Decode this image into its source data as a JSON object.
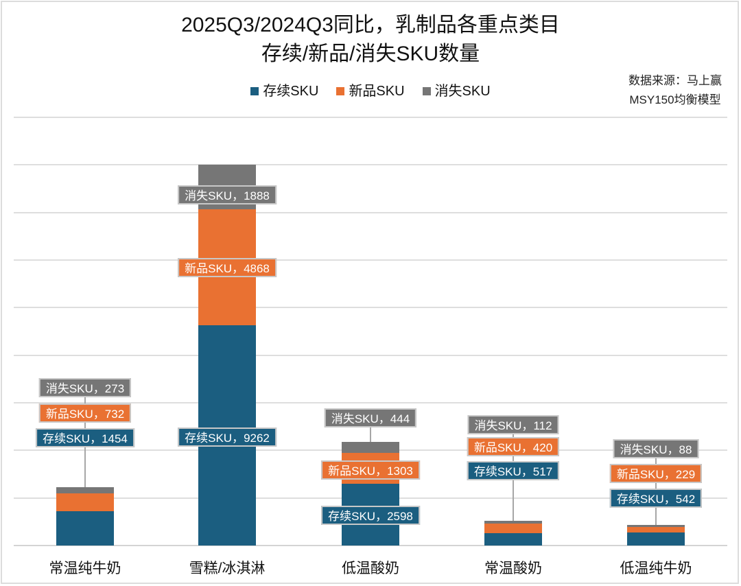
{
  "title": {
    "line1": "2025Q3/2024Q3同比，乳制品各重点类目",
    "line2": "存续/新品/消失SKU数量"
  },
  "source": {
    "line1": "数据来源：马上赢",
    "line2": "MSY150均衡模型"
  },
  "legend": [
    {
      "label": "存续SKU",
      "color": "#1B5E80"
    },
    {
      "label": "新品SKU",
      "color": "#E97132"
    },
    {
      "label": "消失SKU",
      "color": "#767676"
    }
  ],
  "colors": {
    "continuing": "#1B5E80",
    "new": "#E97132",
    "discontinued": "#767676",
    "grid": "#DEDEDE"
  },
  "chart_data": {
    "type": "bar",
    "stacked": true,
    "title": "2025Q3/2024Q3同比，乳制品各重点类目 存续/新品/消失SKU数量",
    "xlabel": "",
    "ylabel": "",
    "ylim": [
      0,
      18000
    ],
    "grid_step": 2000,
    "grid": true,
    "y_tick_labels_visible": false,
    "legend_position": "top",
    "annotation": "数据来源：马上赢 MSY150均衡模型",
    "categories": [
      "常温纯牛奶",
      "雪糕/冰淇淋",
      "低温酸奶",
      "常温酸奶",
      "低温纯牛奶"
    ],
    "series": [
      {
        "name": "存续SKU",
        "values": [
          1454,
          9262,
          2598,
          517,
          542
        ]
      },
      {
        "name": "新品SKU",
        "values": [
          732,
          4868,
          1303,
          420,
          229
        ]
      },
      {
        "name": "消失SKU",
        "values": [
          273,
          1888,
          444,
          112,
          88
        ]
      }
    ],
    "data_labels": [
      [
        "存续SKU，1454",
        "新品SKU，732",
        "消失SKU，273"
      ],
      [
        "存续SKU，9262",
        "新品SKU，4868",
        "消失SKU，1888"
      ],
      [
        "存续SKU，2598",
        "新品SKU，1303",
        "消失SKU，444"
      ],
      [
        "存续SKU，517",
        "新品SKU，420",
        "消失SKU，112"
      ],
      [
        "存续SKU，542",
        "新品SKU，229",
        "消失SKU，88"
      ]
    ]
  }
}
